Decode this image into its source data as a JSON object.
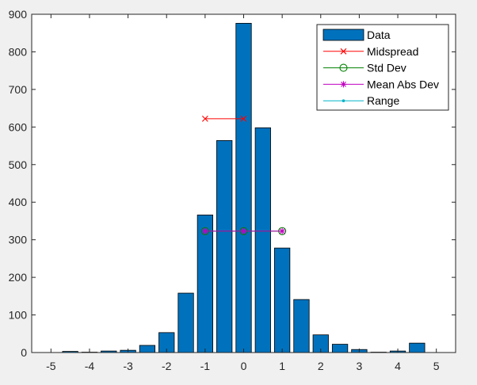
{
  "chart_data": {
    "type": "bar",
    "xlim": [
      -5.5,
      5.5
    ],
    "ylim": [
      0,
      900
    ],
    "xticks": [
      "-5",
      "-4",
      "-3",
      "-2",
      "-1",
      "0",
      "1",
      "2",
      "3",
      "4",
      "5"
    ],
    "yticks": [
      "0",
      "100",
      "200",
      "300",
      "400",
      "500",
      "600",
      "700",
      "800",
      "900"
    ],
    "grid": false,
    "legend_position": "top-right",
    "colors": {
      "bar": "#0072bd",
      "midspread": "#ff0000",
      "std_dev": "#008000",
      "mean_abs_dev": "#c000c0",
      "range": "#00b4c8",
      "axes": "#262626",
      "plot_bg": "#ffffff",
      "figure_bg": "#f0f0f0"
    },
    "bars": {
      "name": "Data",
      "x": [
        -4.5,
        -4,
        -3.5,
        -3,
        -2.5,
        -2,
        -1.5,
        -1,
        -0.5,
        0,
        0.5,
        1,
        1.5,
        2,
        2.5,
        3,
        3.5,
        4,
        4.5
      ],
      "values": [
        3,
        1,
        4,
        6,
        19,
        53,
        158,
        366,
        564,
        876,
        598,
        278,
        141,
        47,
        22,
        8,
        1,
        4,
        25
      ]
    },
    "lines": [
      {
        "name": "Midspread",
        "x": [
          -1,
          0
        ],
        "y": [
          622,
          622
        ],
        "marker": "x",
        "color_key": "midspread"
      },
      {
        "name": "Std Dev",
        "x": [
          -1,
          0,
          1
        ],
        "y": [
          323,
          323,
          323
        ],
        "marker": "o",
        "color_key": "std_dev"
      },
      {
        "name": "Mean Abs Dev",
        "x": [
          -1,
          0,
          1
        ],
        "y": [
          323,
          323,
          323
        ],
        "marker": "*",
        "color_key": "mean_abs_dev"
      },
      {
        "name": "Range",
        "x": [],
        "y": [],
        "marker": ".",
        "color_key": "range"
      }
    ]
  }
}
